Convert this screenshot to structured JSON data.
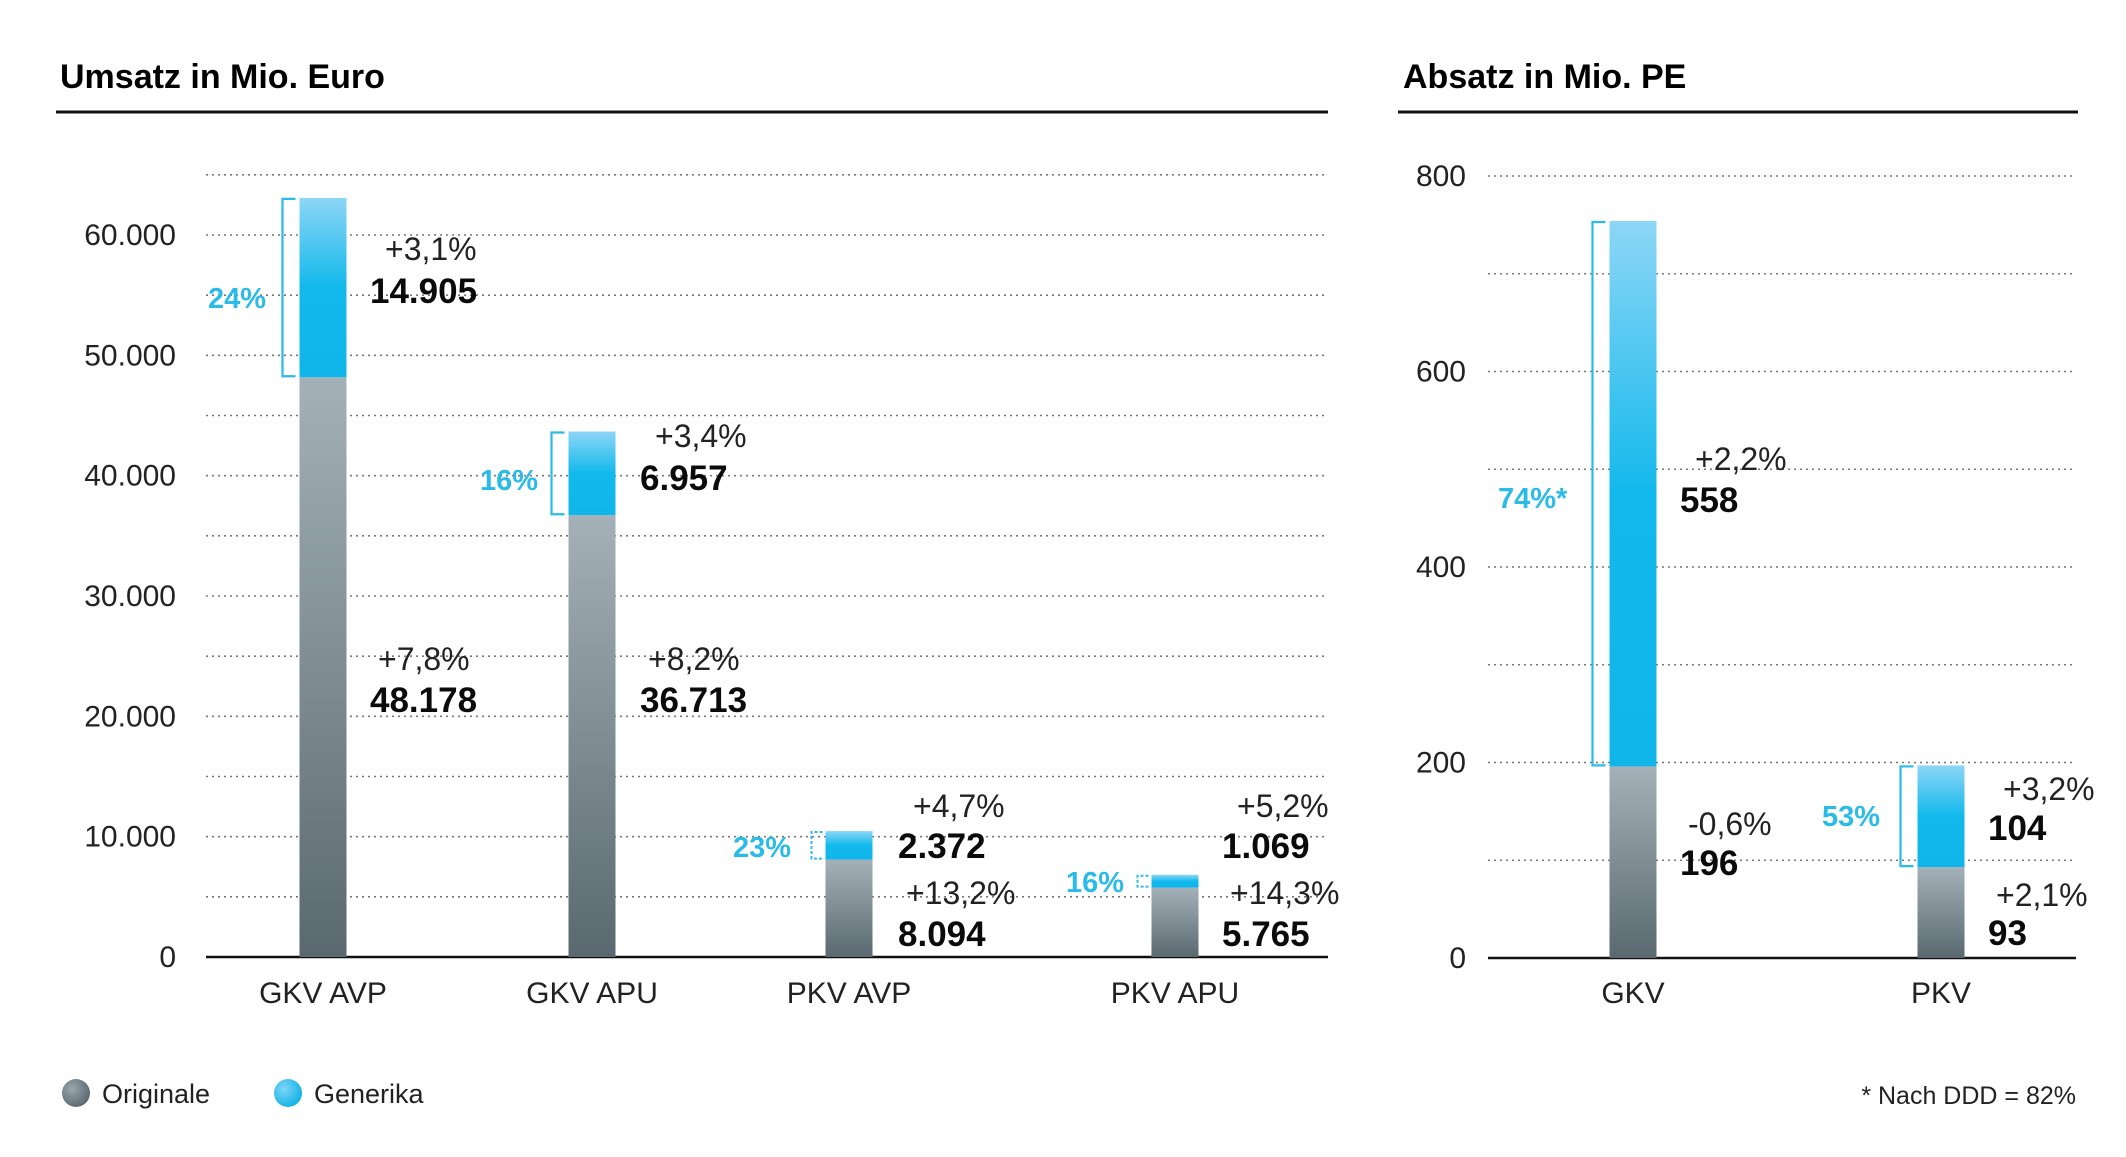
{
  "legend": {
    "originale": "Originale",
    "generika": "Generika"
  },
  "footnote": "* Nach DDD = 82%",
  "colors": {
    "originale": "#6a7a84",
    "generika": "#12b9ec",
    "percent_label": "#2bbbe8"
  },
  "chart_data": [
    {
      "type": "bar",
      "stacked": true,
      "title": "Umsatz in Mio. Euro",
      "categories": [
        "GKV AVP",
        "GKV APU",
        "PKV AVP",
        "PKV APU"
      ],
      "ylim": [
        0,
        66000
      ],
      "yticks": [
        0,
        10000,
        20000,
        30000,
        40000,
        50000,
        60000
      ],
      "ytick_labels": [
        "0",
        "10.000",
        "20.000",
        "30.000",
        "40.000",
        "50.000",
        "60.000"
      ],
      "grid": true,
      "series": [
        {
          "name": "Originale",
          "values": [
            48178,
            36713,
            8094,
            5765
          ],
          "labels": [
            "48.178",
            "36.713",
            "8.094",
            "5.765"
          ],
          "changes": [
            "+7,8%",
            "+8,2%",
            "+13,2%",
            "+14,3%"
          ]
        },
        {
          "name": "Generika",
          "values": [
            14905,
            6957,
            2372,
            1069
          ],
          "labels": [
            "14.905",
            "6.957",
            "2.372",
            "1.069"
          ],
          "changes": [
            "+3,1%",
            "+3,4%",
            "+4,7%",
            "+5,2%"
          ],
          "share_labels": [
            "24%",
            "16%",
            "23%",
            "16%"
          ]
        }
      ]
    },
    {
      "type": "bar",
      "stacked": true,
      "title": "Absatz in Mio. PE",
      "categories": [
        "GKV",
        "PKV"
      ],
      "ylim": [
        0,
        800
      ],
      "yticks": [
        0,
        200,
        400,
        600,
        800
      ],
      "ytick_labels": [
        "0",
        "200",
        "400",
        "600",
        "800"
      ],
      "grid": true,
      "series": [
        {
          "name": "Originale",
          "values": [
            196,
            93
          ],
          "labels": [
            "196",
            "93"
          ],
          "changes": [
            "-0,6%",
            "+2,1%"
          ]
        },
        {
          "name": "Generika",
          "values": [
            558,
            104
          ],
          "labels": [
            "558",
            "104"
          ],
          "changes": [
            "+2,2%",
            "+3,2%"
          ],
          "share_labels": [
            "74%*",
            "53%"
          ]
        }
      ]
    }
  ]
}
